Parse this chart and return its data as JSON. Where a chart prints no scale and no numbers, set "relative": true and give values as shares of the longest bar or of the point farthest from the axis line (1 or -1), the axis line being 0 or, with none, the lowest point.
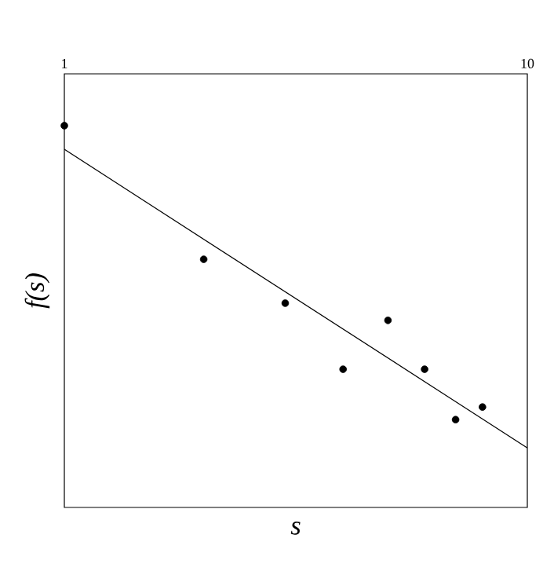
{
  "chart_data": {
    "type": "scatter",
    "xlabel": "s",
    "ylabel": "f(s)",
    "log": "x",
    "xlim": [
      1,
      10
    ],
    "xticks": [
      1,
      10
    ],
    "tick_labels": "x",
    "relative": true,
    "grid": false,
    "series": [
      {
        "x": [
          1,
          2,
          3,
          4,
          5,
          6,
          7,
          8
        ],
        "values": [
          1.0,
          0.65,
          0.535,
          0.362,
          0.49,
          0.362,
          0.23,
          0.263
        ],
        "color": "#000000",
        "marker": "circle"
      },
      {
        "type": "line",
        "x": [
          1,
          10
        ],
        "values": [
          0.938,
          0.156
        ],
        "color": "#000000",
        "marker": "none",
        "line_style": "solid"
      }
    ]
  }
}
